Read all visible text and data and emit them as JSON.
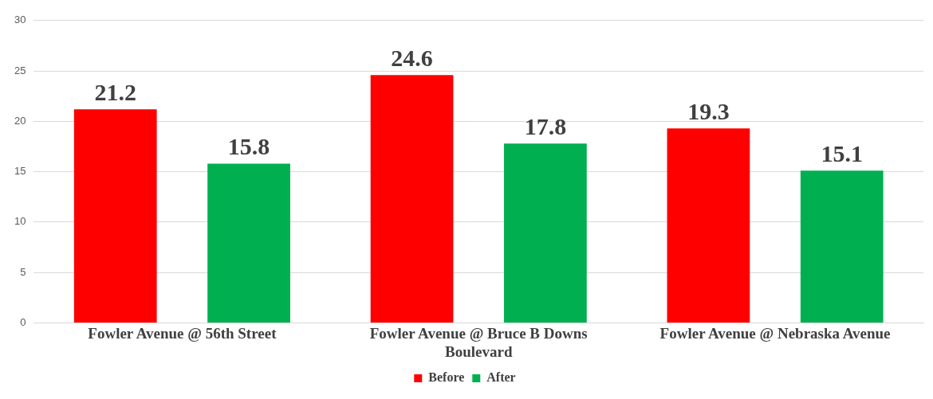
{
  "chart_data": {
    "type": "bar",
    "categories": [
      "Fowler Avenue @ 56th Street",
      "Fowler Avenue @ Bruce B Downs Boulevard",
      "Fowler Avenue @ Nebraska Avenue"
    ],
    "series": [
      {
        "name": "Before",
        "color": "#ff0000",
        "values": [
          21.2,
          24.6,
          19.3
        ]
      },
      {
        "name": "After",
        "color": "#00b050",
        "values": [
          15.8,
          17.8,
          15.1
        ]
      }
    ],
    "ylim": [
      0,
      30
    ],
    "yticks": [
      0,
      5,
      10,
      15,
      20,
      25,
      30
    ],
    "grid": "y",
    "legend": "bottom",
    "data_labels": true
  }
}
